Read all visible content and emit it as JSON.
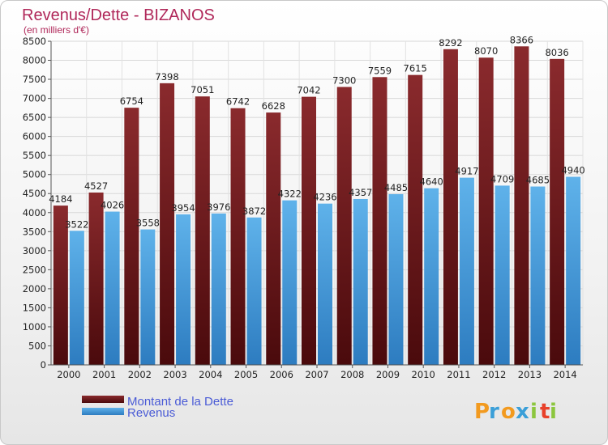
{
  "colors": {
    "dette": "#7a1f22",
    "revenus": "#3a97d9",
    "title": "#b0285a",
    "legend_text": "#4a5bd6"
  },
  "logo": {
    "letters": [
      "P",
      "r",
      "o",
      "x",
      "i",
      "t",
      "i"
    ],
    "colors": [
      "#f29a1f",
      "#3b9fd8",
      "#f29a1f",
      "#3b9fd8",
      "#8cc63e",
      "#e8412a",
      "#8cc63e"
    ]
  },
  "chart_data": {
    "type": "bar",
    "title": "Revenus/Dette - BIZANOS",
    "subtitle": "(en milliers d'€)",
    "categories": [
      "2000",
      "2001",
      "2002",
      "2003",
      "2004",
      "2005",
      "2006",
      "2007",
      "2008",
      "2009",
      "2010",
      "2011",
      "2012",
      "2013",
      "2014"
    ],
    "series": [
      {
        "name": "Montant de la Dette",
        "values": [
          4184,
          4527,
          6754,
          7398,
          7051,
          6742,
          6628,
          7042,
          7300,
          7559,
          7615,
          8292,
          8070,
          8366,
          8036
        ]
      },
      {
        "name": "Revenus",
        "values": [
          3522,
          4026,
          3558,
          3954,
          3976,
          3872,
          4322,
          4236,
          4357,
          4485,
          4640,
          4917,
          4709,
          4685,
          4940
        ]
      }
    ],
    "ylim": [
      0,
      8500
    ],
    "yticks": [
      0,
      500,
      1000,
      1500,
      2000,
      2500,
      3000,
      3500,
      4000,
      4500,
      5000,
      5500,
      6000,
      6500,
      7000,
      7500,
      8000,
      8500
    ],
    "grid": true,
    "legend_position": "bottom-left"
  }
}
